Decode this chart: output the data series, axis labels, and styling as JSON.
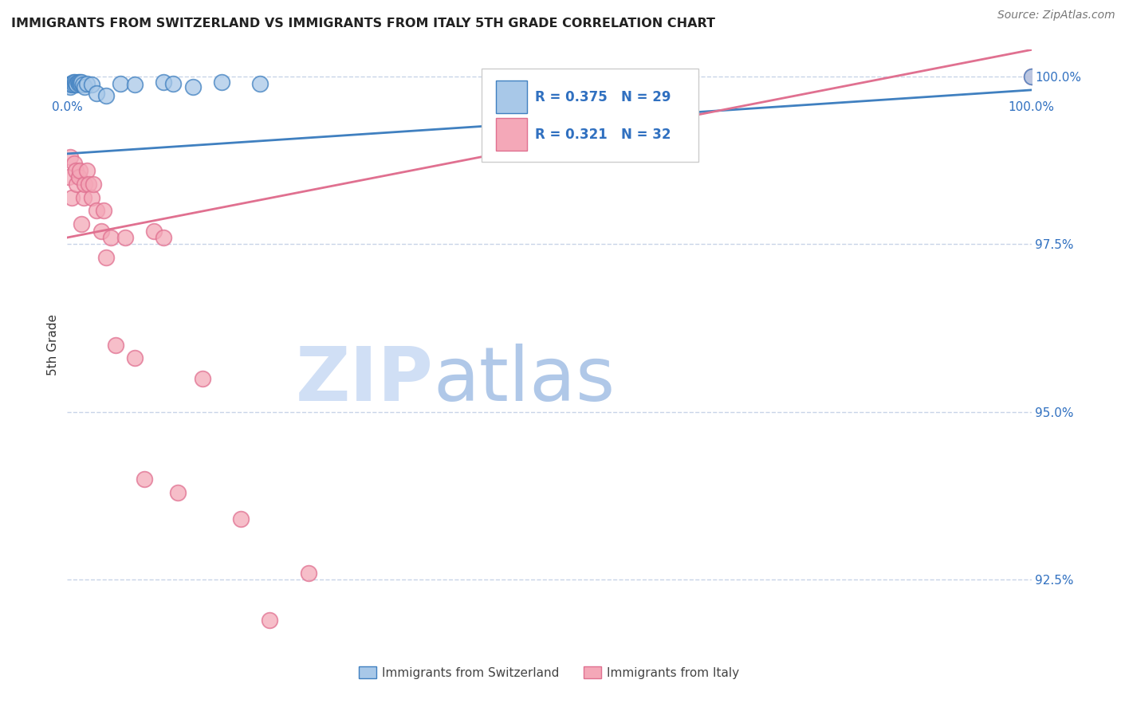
{
  "title": "IMMIGRANTS FROM SWITZERLAND VS IMMIGRANTS FROM ITALY 5TH GRADE CORRELATION CHART",
  "source": "Source: ZipAtlas.com",
  "ylabel": "5th Grade",
  "swiss_color": "#a8c8e8",
  "italy_color": "#f4a8b8",
  "swiss_line_color": "#4080c0",
  "italy_line_color": "#e07090",
  "legend_text_color": "#3070c0",
  "watermark_zip_color": "#c8d8f0",
  "watermark_atlas_color": "#a0b8d8",
  "background_color": "#ffffff",
  "grid_color": "#c8d4e8",
  "x_range": [
    0.0,
    1.0
  ],
  "y_range": [
    0.916,
    1.004
  ],
  "y_ticks": [
    0.925,
    0.95,
    0.975,
    1.0
  ],
  "swiss_scatter_x": [
    0.002,
    0.003,
    0.004,
    0.005,
    0.006,
    0.007,
    0.008,
    0.009,
    0.01,
    0.011,
    0.012,
    0.013,
    0.014,
    0.015,
    0.016,
    0.018,
    0.02,
    0.025,
    0.03,
    0.04,
    0.055,
    0.07,
    0.1,
    0.11,
    0.13,
    0.16,
    0.2,
    0.55,
    1.0
  ],
  "swiss_scatter_y": [
    0.9988,
    0.9985,
    0.999,
    0.9988,
    0.9992,
    0.9988,
    0.9992,
    0.999,
    0.9988,
    0.9992,
    0.999,
    0.9992,
    0.999,
    0.9992,
    0.9988,
    0.9985,
    0.999,
    0.9988,
    0.9975,
    0.9972,
    0.999,
    0.9988,
    0.9992,
    0.999,
    0.9985,
    0.9992,
    0.999,
    0.999,
    1.0
  ],
  "italy_scatter_x": [
    0.001,
    0.003,
    0.005,
    0.007,
    0.009,
    0.01,
    0.012,
    0.013,
    0.015,
    0.017,
    0.018,
    0.02,
    0.022,
    0.025,
    0.027,
    0.03,
    0.035,
    0.038,
    0.04,
    0.045,
    0.05,
    0.06,
    0.07,
    0.08,
    0.09,
    0.1,
    0.115,
    0.14,
    0.18,
    0.21,
    0.25,
    1.0
  ],
  "italy_scatter_y": [
    0.985,
    0.988,
    0.982,
    0.987,
    0.986,
    0.984,
    0.985,
    0.986,
    0.978,
    0.982,
    0.984,
    0.986,
    0.984,
    0.982,
    0.984,
    0.98,
    0.977,
    0.98,
    0.973,
    0.976,
    0.96,
    0.976,
    0.958,
    0.94,
    0.977,
    0.976,
    0.938,
    0.955,
    0.934,
    0.919,
    0.926,
    1.0
  ],
  "swiss_line_x": [
    0.0,
    1.0
  ],
  "swiss_line_y": [
    0.9885,
    0.998
  ],
  "italy_line_x": [
    0.0,
    1.0
  ],
  "italy_line_y": [
    0.976,
    1.004
  ],
  "leg_r_swiss": "R = 0.375",
  "leg_n_swiss": "N = 29",
  "leg_r_italy": "R = 0.321",
  "leg_n_italy": "N = 32"
}
